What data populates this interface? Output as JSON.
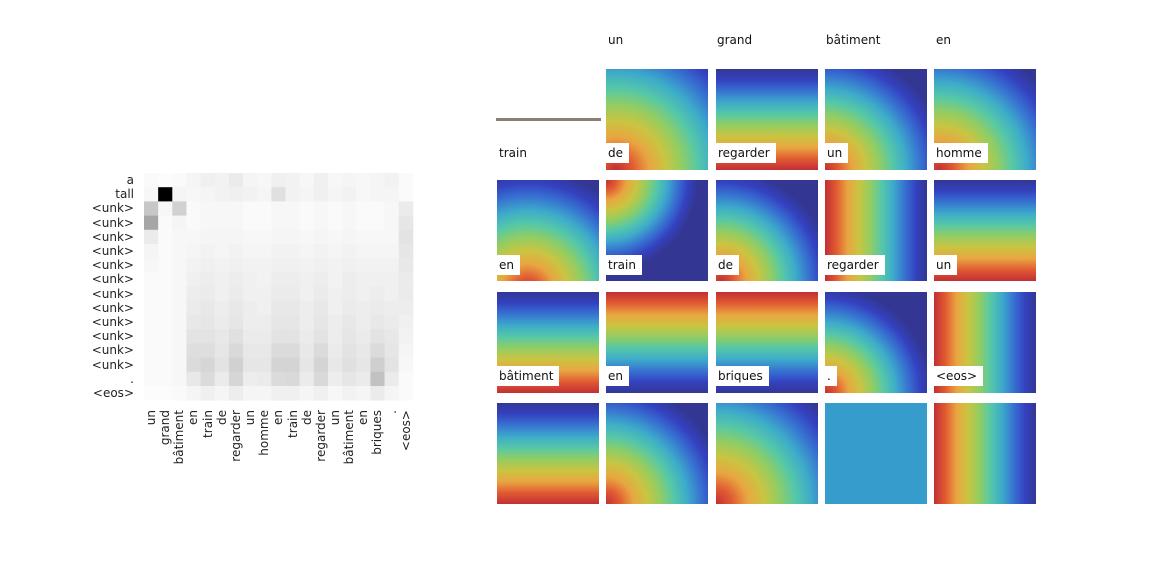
{
  "rows": [
    "a",
    "tall",
    "<unk>",
    "<unk>",
    "<unk>",
    "<unk>",
    "<unk>",
    "<unk>",
    "<unk>",
    "<unk>",
    "<unk>",
    "<unk>",
    "<unk>",
    "<unk>",
    ".",
    "<eos>"
  ],
  "cols": [
    "un",
    "grand",
    "bâtiment",
    "en",
    "train",
    "de",
    "regarder",
    "un",
    "homme",
    "en",
    "train",
    "de",
    "regarder",
    "un",
    "bâtiment",
    "en",
    "briques",
    ".",
    "<eos>"
  ],
  "attention": [
    [
      0.02,
      0.01,
      0.02,
      0.04,
      0.06,
      0.05,
      0.08,
      0.04,
      0.03,
      0.06,
      0.05,
      0.03,
      0.06,
      0.03,
      0.04,
      0.03,
      0.04,
      0.05,
      0.02
    ],
    [
      0.03,
      1.0,
      0.04,
      0.03,
      0.04,
      0.05,
      0.06,
      0.05,
      0.04,
      0.12,
      0.05,
      0.04,
      0.06,
      0.04,
      0.05,
      0.03,
      0.04,
      0.04,
      0.02
    ],
    [
      0.22,
      0.03,
      0.18,
      0.02,
      0.03,
      0.03,
      0.03,
      0.02,
      0.02,
      0.03,
      0.03,
      0.02,
      0.03,
      0.02,
      0.03,
      0.02,
      0.02,
      0.03,
      0.08
    ],
    [
      0.35,
      0.02,
      0.04,
      0.02,
      0.03,
      0.03,
      0.03,
      0.02,
      0.02,
      0.03,
      0.03,
      0.02,
      0.03,
      0.02,
      0.03,
      0.02,
      0.02,
      0.03,
      0.1
    ],
    [
      0.08,
      0.02,
      0.03,
      0.03,
      0.04,
      0.04,
      0.04,
      0.03,
      0.03,
      0.04,
      0.04,
      0.03,
      0.04,
      0.03,
      0.04,
      0.03,
      0.03,
      0.03,
      0.11
    ],
    [
      0.04,
      0.02,
      0.03,
      0.04,
      0.05,
      0.04,
      0.05,
      0.04,
      0.04,
      0.05,
      0.05,
      0.04,
      0.05,
      0.04,
      0.05,
      0.04,
      0.04,
      0.04,
      0.1
    ],
    [
      0.03,
      0.02,
      0.03,
      0.05,
      0.06,
      0.05,
      0.06,
      0.05,
      0.05,
      0.06,
      0.06,
      0.05,
      0.06,
      0.05,
      0.06,
      0.05,
      0.05,
      0.05,
      0.09
    ],
    [
      0.02,
      0.02,
      0.03,
      0.06,
      0.07,
      0.06,
      0.07,
      0.06,
      0.05,
      0.07,
      0.07,
      0.06,
      0.07,
      0.05,
      0.07,
      0.06,
      0.06,
      0.06,
      0.08
    ],
    [
      0.02,
      0.02,
      0.03,
      0.07,
      0.08,
      0.06,
      0.08,
      0.06,
      0.06,
      0.08,
      0.08,
      0.06,
      0.08,
      0.06,
      0.07,
      0.06,
      0.07,
      0.06,
      0.08
    ],
    [
      0.02,
      0.02,
      0.03,
      0.08,
      0.09,
      0.07,
      0.09,
      0.07,
      0.06,
      0.09,
      0.09,
      0.07,
      0.09,
      0.06,
      0.08,
      0.07,
      0.08,
      0.07,
      0.07
    ],
    [
      0.02,
      0.02,
      0.03,
      0.09,
      0.1,
      0.08,
      0.1,
      0.07,
      0.07,
      0.1,
      0.1,
      0.07,
      0.1,
      0.07,
      0.09,
      0.07,
      0.09,
      0.08,
      0.06
    ],
    [
      0.02,
      0.02,
      0.03,
      0.11,
      0.11,
      0.09,
      0.12,
      0.08,
      0.08,
      0.11,
      0.11,
      0.08,
      0.11,
      0.07,
      0.1,
      0.08,
      0.11,
      0.09,
      0.05
    ],
    [
      0.02,
      0.02,
      0.03,
      0.13,
      0.13,
      0.1,
      0.15,
      0.09,
      0.09,
      0.14,
      0.14,
      0.09,
      0.14,
      0.08,
      0.11,
      0.09,
      0.14,
      0.1,
      0.04
    ],
    [
      0.02,
      0.02,
      0.03,
      0.14,
      0.16,
      0.11,
      0.18,
      0.1,
      0.1,
      0.17,
      0.17,
      0.1,
      0.17,
      0.09,
      0.12,
      0.1,
      0.19,
      0.11,
      0.03
    ],
    [
      0.02,
      0.02,
      0.03,
      0.09,
      0.14,
      0.08,
      0.16,
      0.07,
      0.08,
      0.14,
      0.15,
      0.08,
      0.15,
      0.07,
      0.1,
      0.08,
      0.24,
      0.08,
      0.02
    ],
    [
      0.01,
      0.01,
      0.02,
      0.04,
      0.06,
      0.04,
      0.07,
      0.04,
      0.04,
      0.06,
      0.06,
      0.04,
      0.06,
      0.03,
      0.05,
      0.04,
      0.08,
      0.04,
      0.02
    ]
  ],
  "columnHeaders": [
    "un",
    "grand",
    "bâtiment",
    "en"
  ],
  "panelLabels": [
    "train",
    "de",
    "regarder",
    "un",
    "homme",
    "en",
    "train",
    "de",
    "regarder",
    "un",
    "bâtiment",
    "en",
    "briques",
    ".",
    "<eos>",
    "",
    "",
    "",
    "",
    ""
  ],
  "maps": [
    {
      "kind": "none"
    },
    {
      "kind": "radial",
      "cx": 0.1,
      "cy": 1.0,
      "r": 1.45
    },
    {
      "kind": "vertical",
      "invert": false
    },
    {
      "kind": "radial",
      "cx": 0.0,
      "cy": 1.0,
      "r": 1.2
    },
    {
      "kind": "radial",
      "cx": 0.05,
      "cy": 1.0,
      "r": 1.3
    },
    {
      "kind": "radial",
      "cx": 0.3,
      "cy": 1.1,
      "r": 1.2
    },
    {
      "kind": "radial",
      "cx": 0.0,
      "cy": 0.0,
      "r": 0.9
    },
    {
      "kind": "radial",
      "cx": 0.05,
      "cy": 1.0,
      "r": 1.1
    },
    {
      "kind": "horizontal",
      "invert": true
    },
    {
      "kind": "vertical",
      "invert": false
    },
    {
      "kind": "vertical",
      "invert": false
    },
    {
      "kind": "vertical",
      "invert": true
    },
    {
      "kind": "vertical",
      "invert": true
    },
    {
      "kind": "radial",
      "cx": 0.0,
      "cy": 1.0,
      "r": 1.05
    },
    {
      "kind": "horizontal",
      "invert": true
    },
    {
      "kind": "vertical",
      "invert": false
    },
    {
      "kind": "radial",
      "cx": 0.0,
      "cy": 1.0,
      "r": 1.2
    },
    {
      "kind": "radial",
      "cx": 0.0,
      "cy": 1.0,
      "r": 1.4
    },
    {
      "kind": "flat",
      "level": 0.36
    },
    {
      "kind": "horizontal",
      "invert": true
    }
  ]
}
